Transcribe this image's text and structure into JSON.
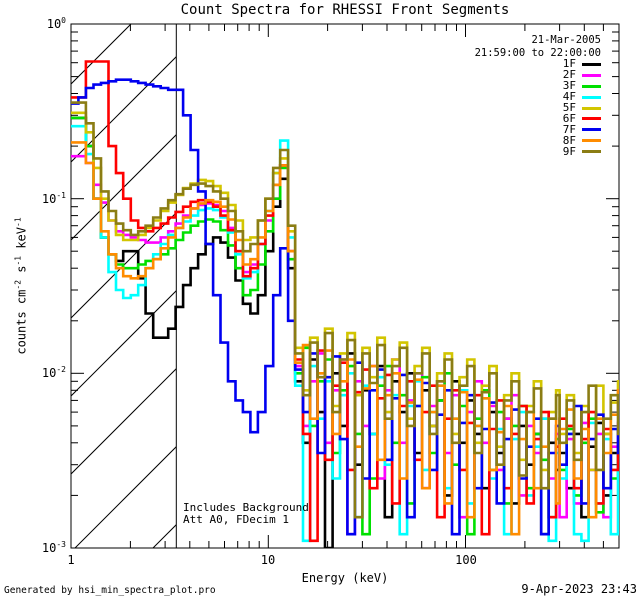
{
  "title": "Count Spectra for RHESSI Front Segments",
  "header": {
    "date": "21-Mar-2005",
    "interval": "21:59:00 to 22:00:00"
  },
  "legend": {
    "entries": [
      {
        "label": "1F",
        "color": "#000000"
      },
      {
        "label": "2F",
        "color": "#ff00ff"
      },
      {
        "label": "3F",
        "color": "#00e000"
      },
      {
        "label": "4F",
        "color": "#00ffff"
      },
      {
        "label": "5F",
        "color": "#d2c500"
      },
      {
        "label": "6F",
        "color": "#ff0000"
      },
      {
        "label": "7F",
        "color": "#0000f0"
      },
      {
        "label": "8F",
        "color": "#ff8c00"
      },
      {
        "label": "9F",
        "color": "#8b7d14"
      }
    ]
  },
  "annotations": {
    "line1": "Includes Background",
    "line2": "Att A0, FDecim 1"
  },
  "footer": {
    "left": "Generated by hsi_min_spectra_plot.pro",
    "right": "9-Apr-2023 23:43"
  },
  "axes": {
    "x": {
      "label": "Energy (keV)",
      "scale": "log",
      "min": 1,
      "max": 600,
      "major_ticks": [
        1,
        10,
        100
      ],
      "tick_labels": [
        "1",
        "10",
        "100"
      ]
    },
    "y": {
      "scale": "log",
      "min": 0.001,
      "max": 1.0,
      "tick_labels": [
        {
          "base": "10",
          "exp": "0"
        },
        {
          "base": "10",
          "exp": "-1"
        },
        {
          "base": "10",
          "exp": "-2"
        },
        {
          "base": "10",
          "exp": "-3"
        }
      ],
      "label_segments": [
        {
          "t": "counts cm"
        },
        {
          "sup": "-2"
        },
        {
          "t": " s"
        },
        {
          "sup": "-1"
        },
        {
          "t": " keV"
        },
        {
          "sup": "-1"
        }
      ]
    }
  },
  "chart_data": {
    "type": "line",
    "mode": "log-log-histogram-steps",
    "title": "Count Spectra for RHESSI Front Segments",
    "xlabel": "Energy (keV)",
    "ylabel": "counts cm^-2 s^-1 keV^-1",
    "xlim": [
      1,
      600
    ],
    "ylim": [
      0.001,
      1.0
    ],
    "grid": false,
    "legend_position": "top-right",
    "hatch_boundary_kev": 3.42,
    "x_bins": [
      1.0,
      1.09,
      1.19,
      1.3,
      1.42,
      1.55,
      1.69,
      1.84,
      2.01,
      2.19,
      2.39,
      2.61,
      2.85,
      3.11,
      3.39,
      3.7,
      4.04,
      4.41,
      4.81,
      5.25,
      5.73,
      6.25,
      6.82,
      7.44,
      8.12,
      8.86,
      9.67,
      10.6,
      11.5,
      12.6,
      13.7,
      15.0,
      16.3,
      17.8,
      19.4,
      21.2,
      23.1,
      25.2,
      27.5,
      30.0,
      32.7,
      35.7,
      39.0,
      42.5,
      46.4,
      50.6,
      55.2,
      60.3,
      65.8,
      71.8,
      78.3,
      85.4,
      93.2,
      102,
      111,
      121,
      132,
      144,
      157,
      171,
      187,
      204,
      222,
      242,
      264,
      288,
      300,
      326,
      355,
      387,
      421,
      459,
      500,
      545,
      593
    ],
    "series": [
      {
        "name": "1F",
        "color": "#000000",
        "values": [
          0.29,
          0.29,
          0.2,
          0.1,
          0.06,
          0.048,
          0.044,
          0.05,
          0.05,
          0.035,
          0.022,
          0.016,
          0.016,
          0.018,
          0.024,
          0.032,
          0.04,
          0.048,
          0.055,
          0.06,
          0.056,
          0.046,
          0.034,
          0.025,
          0.022,
          0.028,
          0.05,
          0.09,
          0.13,
          0.04,
          0.009,
          0.004,
          0.012,
          0.006,
          0.001,
          0.01,
          0.005,
          0.013,
          0.003,
          0.008,
          0.0045,
          0.011,
          0.0015,
          0.009,
          0.006,
          0.01,
          0.0035,
          0.008,
          0.005,
          0.007,
          0.002,
          0.009,
          0.004,
          0.007,
          0.0045,
          0.0022,
          0.006,
          0.0035,
          0.0055,
          0.0018,
          0.005,
          0.003,
          0.0045,
          0.0012,
          0.004,
          0.0028,
          0.0035,
          0.0022,
          0.0045,
          0.0015,
          0.0038,
          0.0052,
          0.002,
          0.0035,
          0.0028
        ]
      },
      {
        "name": "2F",
        "color": "#ff00ff",
        "values": [
          0.175,
          0.175,
          0.16,
          0.12,
          0.095,
          0.075,
          0.065,
          0.062,
          0.06,
          0.058,
          0.056,
          0.056,
          0.06,
          0.065,
          0.072,
          0.08,
          0.088,
          0.092,
          0.094,
          0.092,
          0.085,
          0.068,
          0.05,
          0.038,
          0.042,
          0.055,
          0.075,
          0.1,
          0.155,
          0.05,
          0.011,
          0.005,
          0.009,
          0.013,
          0.004,
          0.008,
          0.012,
          0.0012,
          0.009,
          0.005,
          0.011,
          0.0025,
          0.008,
          0.012,
          0.004,
          0.007,
          0.01,
          0.0022,
          0.0065,
          0.009,
          0.0035,
          0.0075,
          0.0015,
          0.006,
          0.009,
          0.004,
          0.0065,
          0.0028,
          0.0055,
          0.0075,
          0.002,
          0.005,
          0.0035,
          0.0055,
          0.0025,
          0.0045,
          0.0015,
          0.0042,
          0.0018,
          0.0052,
          0.0028,
          0.0045,
          0.0015,
          0.0038,
          0.0052
        ]
      },
      {
        "name": "3F",
        "color": "#00e000",
        "values": [
          0.29,
          0.29,
          0.2,
          0.1,
          0.06,
          0.048,
          0.042,
          0.04,
          0.04,
          0.042,
          0.044,
          0.045,
          0.048,
          0.052,
          0.058,
          0.064,
          0.07,
          0.074,
          0.076,
          0.074,
          0.066,
          0.054,
          0.04,
          0.028,
          0.03,
          0.042,
          0.065,
          0.1,
          0.15,
          0.045,
          0.01,
          0.014,
          0.005,
          0.009,
          0.012,
          0.0035,
          0.008,
          0.011,
          0.0045,
          0.0012,
          0.0025,
          0.0085,
          0.011,
          0.004,
          0.0075,
          0.0018,
          0.0065,
          0.0095,
          0.0035,
          0.007,
          0.01,
          0.003,
          0.0065,
          0.0012,
          0.0055,
          0.008,
          0.0028,
          0.006,
          0.0018,
          0.005,
          0.0065,
          0.0022,
          0.0045,
          0.0032,
          0.0015,
          0.0042,
          0.0028,
          0.0048,
          0.002,
          0.004,
          0.0055,
          0.0016,
          0.0045,
          0.0025,
          0.0038
        ]
      },
      {
        "name": "4F",
        "color": "#00ffff",
        "values": [
          0.26,
          0.26,
          0.18,
          0.1,
          0.06,
          0.038,
          0.03,
          0.027,
          0.028,
          0.032,
          0.04,
          0.048,
          0.055,
          0.062,
          0.068,
          0.074,
          0.08,
          0.086,
          0.088,
          0.086,
          0.078,
          0.064,
          0.048,
          0.035,
          0.038,
          0.055,
          0.085,
          0.14,
          0.215,
          0.06,
          0.0085,
          0.0011,
          0.011,
          0.0055,
          0.009,
          0.0025,
          0.0075,
          0.01,
          0.0015,
          0.0085,
          0.0045,
          0.0095,
          0.003,
          0.0075,
          0.0012,
          0.0065,
          0.009,
          0.0028,
          0.006,
          0.0085,
          0.0022,
          0.0055,
          0.008,
          0.0018,
          0.005,
          0.0072,
          0.0025,
          0.0048,
          0.0012,
          0.0042,
          0.006,
          0.002,
          0.0038,
          0.0055,
          0.0011,
          0.0035,
          0.0025,
          0.0045,
          0.0012,
          0.0011,
          0.0052,
          0.0018,
          0.0042,
          0.0012,
          0.0035
        ]
      },
      {
        "name": "5F",
        "color": "#d2c500",
        "values": [
          0.31,
          0.31,
          0.24,
          0.15,
          0.1,
          0.075,
          0.062,
          0.058,
          0.058,
          0.062,
          0.068,
          0.075,
          0.085,
          0.095,
          0.105,
          0.115,
          0.122,
          0.128,
          0.126,
          0.118,
          0.108,
          0.092,
          0.075,
          0.058,
          0.06,
          0.075,
          0.1,
          0.14,
          0.17,
          0.065,
          0.014,
          0.008,
          0.016,
          0.01,
          0.018,
          0.0065,
          0.013,
          0.017,
          0.0075,
          0.014,
          0.0095,
          0.016,
          0.006,
          0.012,
          0.015,
          0.0055,
          0.011,
          0.014,
          0.005,
          0.01,
          0.013,
          0.0045,
          0.0095,
          0.012,
          0.004,
          0.0085,
          0.011,
          0.0038,
          0.0075,
          0.01,
          0.0032,
          0.0065,
          0.009,
          0.0028,
          0.006,
          0.008,
          0.0045,
          0.0075,
          0.0035,
          0.0065,
          0.0028,
          0.0085,
          0.0045,
          0.0068,
          0.009
        ]
      },
      {
        "name": "6F",
        "color": "#ff0000",
        "values": [
          0.38,
          0.38,
          0.61,
          0.61,
          0.61,
          0.2,
          0.14,
          0.1,
          0.075,
          0.068,
          0.065,
          0.068,
          0.072,
          0.078,
          0.084,
          0.09,
          0.096,
          0.098,
          0.096,
          0.09,
          0.08,
          0.066,
          0.05,
          0.036,
          0.04,
          0.055,
          0.08,
          0.12,
          0.155,
          0.05,
          0.012,
          0.0045,
          0.0011,
          0.0135,
          0.0032,
          0.0085,
          0.0115,
          0.0028,
          0.0078,
          0.0105,
          0.0022,
          0.0072,
          0.0098,
          0.0018,
          0.0065,
          0.009,
          0.0032,
          0.006,
          0.0085,
          0.0015,
          0.0055,
          0.008,
          0.0028,
          0.0052,
          0.0075,
          0.0012,
          0.0048,
          0.007,
          0.0022,
          0.0045,
          0.0065,
          0.0018,
          0.0042,
          0.006,
          0.0015,
          0.0038,
          0.0055,
          0.005,
          0.0022,
          0.0042,
          0.006,
          0.0018,
          0.0048,
          0.0028,
          0.004
        ]
      },
      {
        "name": "7F",
        "color": "#0000f0",
        "values": [
          0.35,
          0.38,
          0.43,
          0.45,
          0.46,
          0.47,
          0.48,
          0.48,
          0.47,
          0.46,
          0.45,
          0.44,
          0.43,
          0.42,
          0.42,
          0.3,
          0.19,
          0.11,
          0.055,
          0.028,
          0.015,
          0.009,
          0.007,
          0.006,
          0.0046,
          0.006,
          0.011,
          0.028,
          0.052,
          0.02,
          0.0105,
          0.006,
          0.013,
          0.0035,
          0.0095,
          0.0125,
          0.0042,
          0.0012,
          0.0115,
          0.0025,
          0.008,
          0.0105,
          0.0032,
          0.0072,
          0.0098,
          0.0015,
          0.0065,
          0.0088,
          0.0028,
          0.0058,
          0.008,
          0.0012,
          0.0052,
          0.0075,
          0.0022,
          0.0048,
          0.0068,
          0.0018,
          0.0042,
          0.0062,
          0.0025,
          0.0038,
          0.0055,
          0.0012,
          0.0035,
          0.005,
          0.003,
          0.0045,
          0.0065,
          0.0018,
          0.0042,
          0.0058,
          0.0022,
          0.0048,
          0.0035
        ]
      },
      {
        "name": "8F",
        "color": "#ff8c00",
        "values": [
          0.21,
          0.21,
          0.16,
          0.1,
          0.065,
          0.048,
          0.04,
          0.036,
          0.035,
          0.036,
          0.04,
          0.045,
          0.052,
          0.06,
          0.068,
          0.078,
          0.088,
          0.094,
          0.098,
          0.096,
          0.09,
          0.076,
          0.058,
          0.042,
          0.045,
          0.06,
          0.085,
          0.12,
          0.155,
          0.05,
          0.0115,
          0.0145,
          0.0055,
          0.01,
          0.0135,
          0.0045,
          0.009,
          0.012,
          0.0038,
          0.0082,
          0.011,
          0.0032,
          0.0075,
          0.01,
          0.0025,
          0.0068,
          0.0092,
          0.0022,
          0.006,
          0.0085,
          0.0018,
          0.0055,
          0.0078,
          0.0015,
          0.005,
          0.0072,
          0.0028,
          0.0046,
          0.0065,
          0.0012,
          0.0042,
          0.006,
          0.0022,
          0.0038,
          0.0055,
          0.0018,
          0.0048,
          0.0062,
          0.0025,
          0.0048,
          0.0015,
          0.0055,
          0.0035,
          0.0058,
          0.008
        ]
      },
      {
        "name": "9F",
        "color": "#8b7d14",
        "values": [
          0.355,
          0.355,
          0.27,
          0.17,
          0.11,
          0.085,
          0.072,
          0.066,
          0.062,
          0.065,
          0.07,
          0.078,
          0.088,
          0.098,
          0.106,
          0.114,
          0.12,
          0.122,
          0.118,
          0.11,
          0.1,
          0.085,
          0.065,
          0.05,
          0.055,
          0.075,
          0.1,
          0.15,
          0.19,
          0.07,
          0.013,
          0.0075,
          0.015,
          0.0095,
          0.017,
          0.006,
          0.012,
          0.0155,
          0.0015,
          0.013,
          0.0088,
          0.0145,
          0.0055,
          0.011,
          0.014,
          0.005,
          0.01,
          0.013,
          0.0045,
          0.009,
          0.012,
          0.004,
          0.0085,
          0.011,
          0.0035,
          0.0078,
          0.01,
          0.003,
          0.007,
          0.009,
          0.0026,
          0.006,
          0.0082,
          0.0022,
          0.0055,
          0.0075,
          0.004,
          0.007,
          0.0032,
          0.006,
          0.0085,
          0.0028,
          0.0055,
          0.0075,
          0.0045
        ]
      }
    ]
  }
}
